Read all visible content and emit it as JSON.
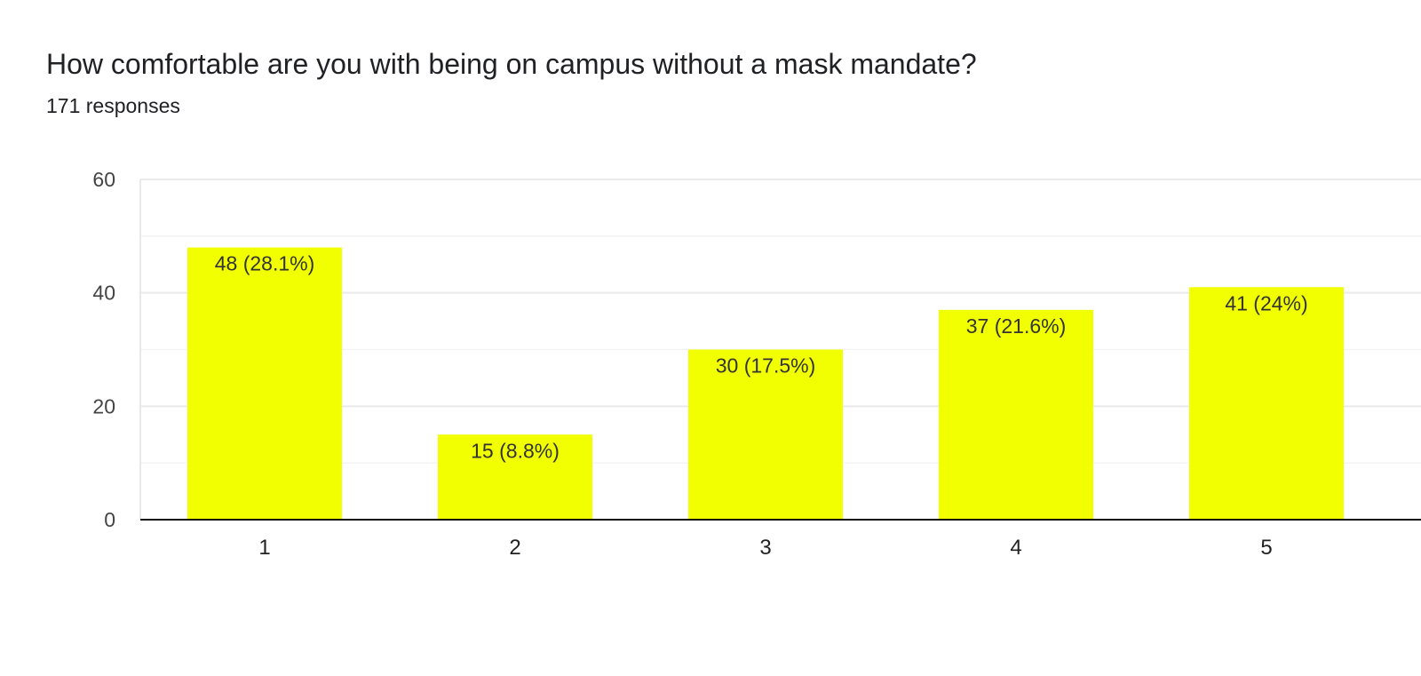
{
  "header": {
    "title": "How comfortable are you with being on campus without a mask mandate?",
    "responses": "171 responses"
  },
  "colors": {
    "bar": "#f1ff00",
    "grid": "#e9e9e9",
    "minor_grid": "#f3f3f3",
    "axis": "#111111"
  },
  "chart_data": {
    "type": "bar",
    "categories": [
      "1",
      "2",
      "3",
      "4",
      "5"
    ],
    "values": [
      48,
      15,
      30,
      37,
      41
    ],
    "data_labels": [
      "48 (28.1%)",
      "15 (8.8%)",
      "30 (17.5%)",
      "37 (21.6%)",
      "41 (24%)"
    ],
    "y_ticks": [
      "0",
      "20",
      "40",
      "60"
    ],
    "ylim": [
      0,
      60
    ],
    "xlabel": "",
    "ylabel": "",
    "grid": true,
    "legend": "none"
  }
}
